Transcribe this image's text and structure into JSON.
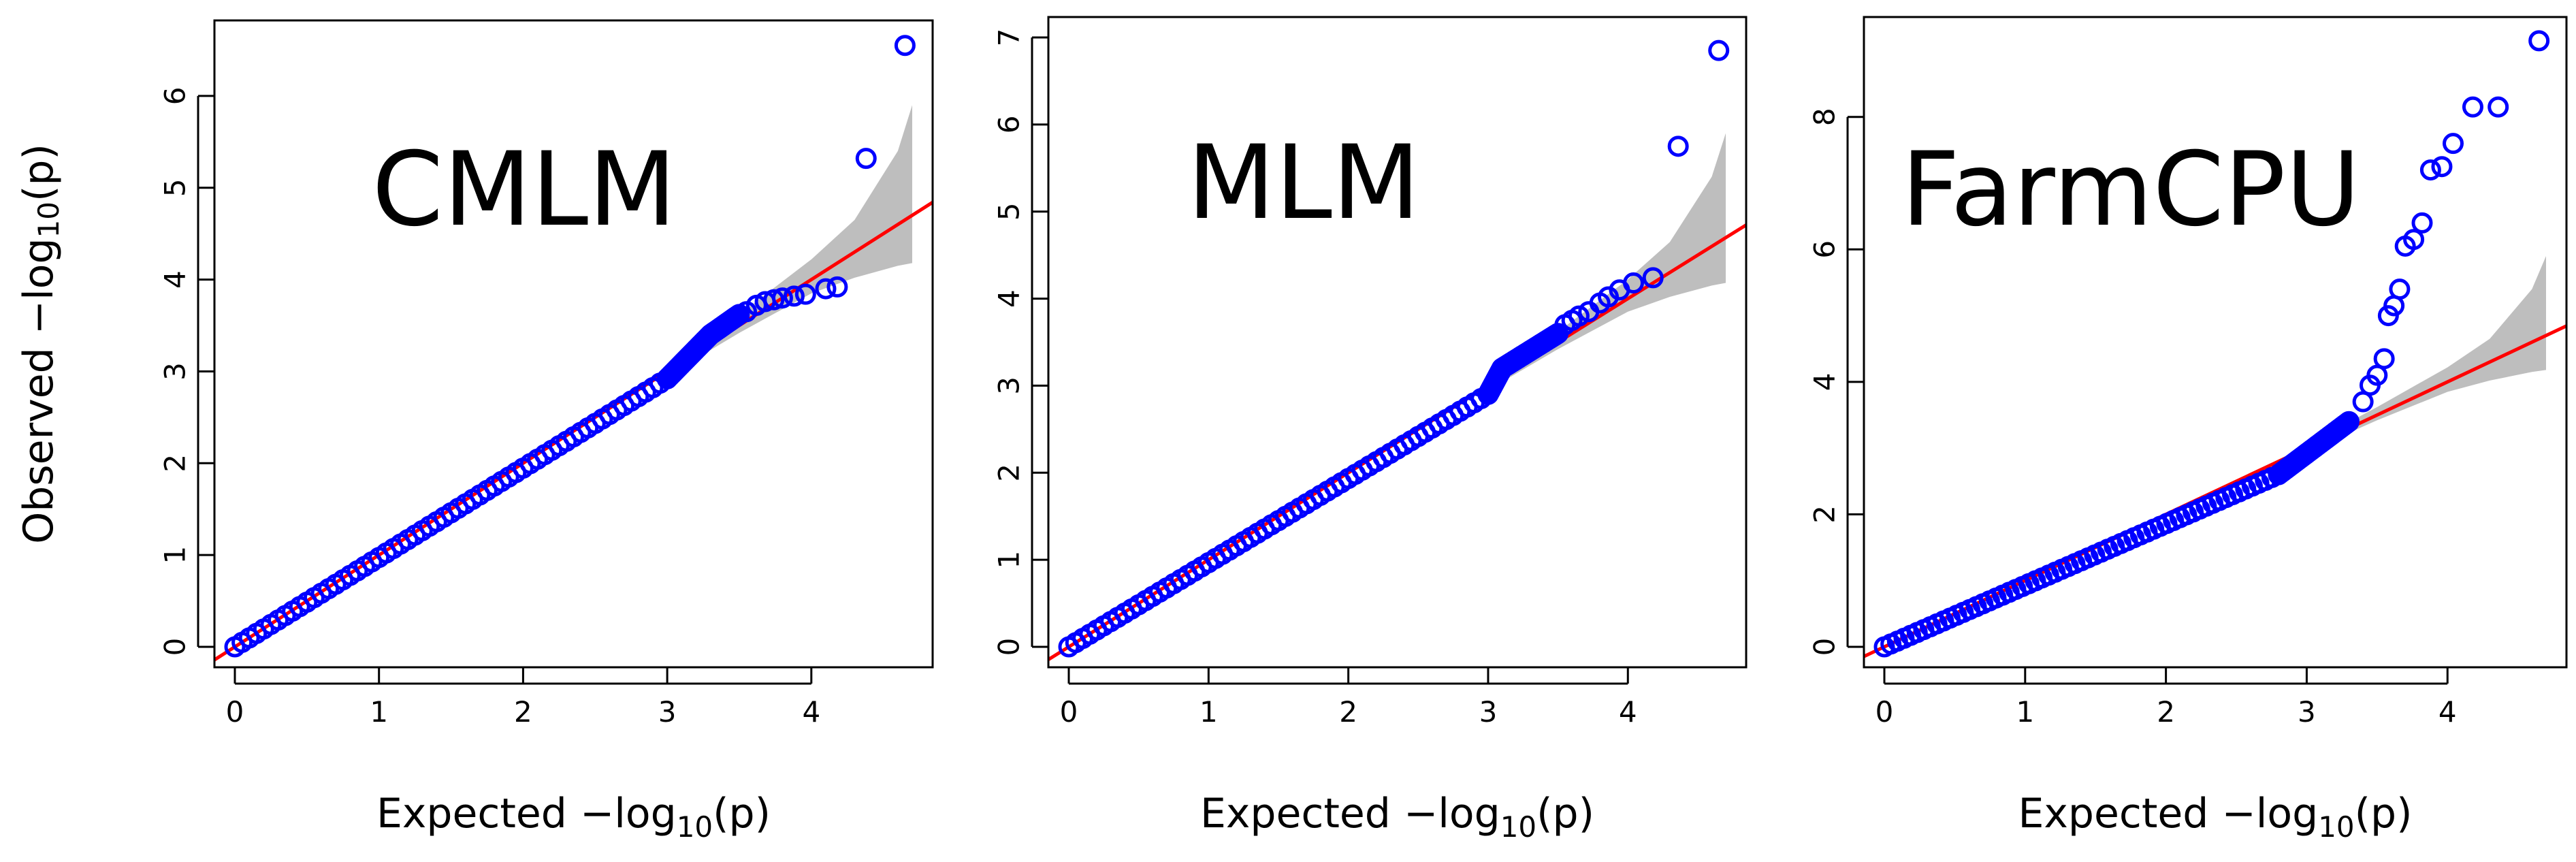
{
  "chart_data": [
    {
      "type": "scatter",
      "title": "CMLM",
      "xlabel": "Expected −log",
      "ylabel": "Observed −log",
      "xlim": [
        0,
        4.7
      ],
      "ylim": [
        0,
        6.6
      ],
      "xticks": [
        0,
        1,
        2,
        3,
        4
      ],
      "yticks": [
        0,
        1,
        2,
        3,
        4,
        5,
        6
      ],
      "reference_line": {
        "color": "#ff0000",
        "slope": 1,
        "intercept": 0
      },
      "bulk_series": {
        "color": "#0000ff",
        "segments": [
          [
            0,
            0,
            3.0,
            2.92
          ],
          [
            3.0,
            2.92,
            3.3,
            3.4
          ],
          [
            3.3,
            3.4,
            3.5,
            3.62
          ]
        ]
      },
      "outliers": {
        "color": "#0000ff",
        "x": [
          3.55,
          3.62,
          3.68,
          3.74,
          3.8,
          3.88,
          3.96,
          4.1,
          4.18,
          4.38,
          4.65
        ],
        "y": [
          3.65,
          3.72,
          3.76,
          3.78,
          3.8,
          3.82,
          3.84,
          3.9,
          3.92,
          5.32,
          6.55
        ]
      },
      "confidence_band": {
        "color": "#bebebe",
        "x": [
          3.0,
          3.5,
          4.0,
          4.3,
          4.6,
          4.7
        ],
        "upper": [
          3.05,
          3.62,
          4.22,
          4.65,
          5.4,
          5.9
        ],
        "lower": [
          2.95,
          3.42,
          3.85,
          4.02,
          4.15,
          4.18
        ]
      }
    },
    {
      "type": "scatter",
      "title": "MLM",
      "xlabel": "Expected −log",
      "ylabel": "",
      "xlim": [
        0,
        4.7
      ],
      "ylim": [
        0,
        7.0
      ],
      "xticks": [
        0,
        1,
        2,
        3,
        4
      ],
      "yticks": [
        0,
        1,
        2,
        3,
        4,
        5,
        6,
        7
      ],
      "reference_line": {
        "color": "#ff0000",
        "slope": 1,
        "intercept": 0
      },
      "bulk_series": {
        "color": "#0000ff",
        "segments": [
          [
            0,
            0,
            3.0,
            2.9
          ],
          [
            3.0,
            2.9,
            3.1,
            3.2
          ],
          [
            3.1,
            3.2,
            3.5,
            3.6
          ]
        ]
      },
      "outliers": {
        "color": "#0000ff",
        "x": [
          3.55,
          3.6,
          3.65,
          3.72,
          3.8,
          3.86,
          3.94,
          4.04,
          4.18,
          4.36,
          4.65
        ],
        "y": [
          3.7,
          3.75,
          3.8,
          3.85,
          3.95,
          4.02,
          4.1,
          4.18,
          4.24,
          5.75,
          6.85
        ]
      },
      "confidence_band": {
        "color": "#bebebe",
        "x": [
          3.0,
          3.5,
          4.0,
          4.3,
          4.6,
          4.7
        ],
        "upper": [
          3.05,
          3.62,
          4.22,
          4.65,
          5.4,
          5.9
        ],
        "lower": [
          2.95,
          3.42,
          3.85,
          4.02,
          4.15,
          4.18
        ]
      }
    },
    {
      "type": "scatter",
      "title": "FarmCPU",
      "xlabel": "Expected −log",
      "ylabel": "",
      "xlim": [
        0,
        4.7
      ],
      "ylim": [
        0,
        9.2
      ],
      "xticks": [
        0,
        1,
        2,
        3,
        4
      ],
      "yticks": [
        0,
        2,
        4,
        6,
        8
      ],
      "reference_line": {
        "color": "#ff0000",
        "slope": 1,
        "intercept": 0
      },
      "bulk_series": {
        "color": "#0000ff",
        "segments": [
          [
            0,
            0,
            2.8,
            2.6
          ],
          [
            2.8,
            2.6,
            3.3,
            3.4
          ]
        ]
      },
      "outliers": {
        "color": "#0000ff",
        "x": [
          3.4,
          3.45,
          3.5,
          3.55,
          3.58,
          3.62,
          3.66,
          3.7,
          3.76,
          3.82,
          3.88,
          3.96,
          4.04,
          4.18,
          4.36,
          4.65
        ],
        "y": [
          3.7,
          3.95,
          4.1,
          4.35,
          5.0,
          5.15,
          5.4,
          6.05,
          6.15,
          6.4,
          7.2,
          7.25,
          7.6,
          8.15,
          8.15,
          9.15
        ]
      },
      "confidence_band": {
        "color": "#bebebe",
        "x": [
          3.0,
          3.5,
          4.0,
          4.3,
          4.6,
          4.7
        ],
        "upper": [
          3.05,
          3.62,
          4.22,
          4.65,
          5.4,
          5.9
        ],
        "lower": [
          2.95,
          3.42,
          3.85,
          4.02,
          4.15,
          4.18
        ]
      }
    }
  ],
  "labels": {
    "xlabel_sub": "10",
    "xlabel_tail": "(p)",
    "ylabel_sub": "10",
    "ylabel_tail": "(p)"
  }
}
